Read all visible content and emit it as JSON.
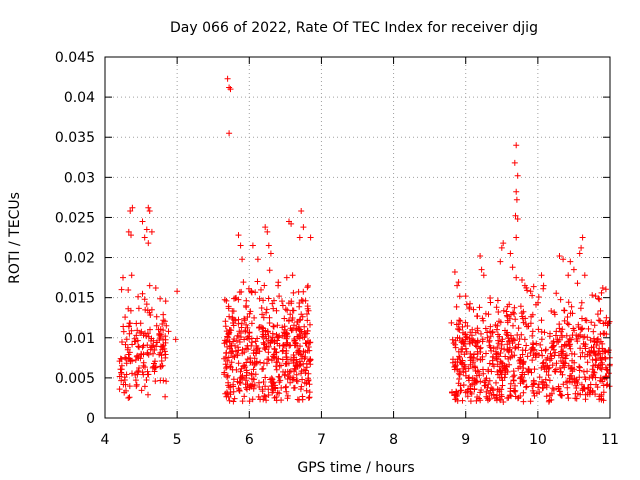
{
  "chart_data": {
    "type": "scatter",
    "title": "Day 066 of 2022, Rate Of TEC Index for receiver djig",
    "xlabel": "GPS time / hours",
    "ylabel": "ROTI / TECUs",
    "xlim": [
      4,
      11
    ],
    "ylim": [
      0,
      0.045
    ],
    "xticks": [
      "4",
      "5",
      "6",
      "7",
      "8",
      "9",
      "10",
      "11"
    ],
    "yticks": [
      "0",
      "0.005",
      "0.01",
      "0.015",
      "0.02",
      "0.025",
      "0.03",
      "0.035",
      "0.04",
      "0.045"
    ],
    "grid": true,
    "marker": "+",
    "marker_color": "#ff0000",
    "series": [
      {
        "name": "ROTI",
        "clusters": [
          {
            "x": [
              4.2,
              4.85
            ],
            "y_center": 0.0085,
            "y_spread": 0.003,
            "n": 170
          },
          {
            "x": [
              5.65,
              6.85
            ],
            "y_center": 0.0085,
            "y_spread": 0.0038,
            "n": 520
          },
          {
            "x": [
              8.8,
              11.0
            ],
            "y_center": 0.0075,
            "y_spread": 0.0035,
            "n": 780
          }
        ],
        "points": [
          [
            4.25,
            0.0175
          ],
          [
            4.23,
            0.016
          ],
          [
            4.35,
            0.0258
          ],
          [
            4.38,
            0.0262
          ],
          [
            4.33,
            0.0232
          ],
          [
            4.36,
            0.0228
          ],
          [
            4.37,
            0.0178
          ],
          [
            4.52,
            0.0245
          ],
          [
            4.6,
            0.0262
          ],
          [
            4.62,
            0.0258
          ],
          [
            4.58,
            0.0235
          ],
          [
            4.65,
            0.0232
          ],
          [
            4.55,
            0.0225
          ],
          [
            4.6,
            0.0218
          ],
          [
            4.52,
            0.0155
          ],
          [
            4.55,
            0.0148
          ],
          [
            4.62,
            0.0165
          ],
          [
            4.58,
            0.0142
          ],
          [
            4.65,
            0.0135
          ],
          [
            4.85,
            0.0115
          ],
          [
            4.88,
            0.0108
          ],
          [
            5.0,
            0.0158
          ],
          [
            4.98,
            0.0098
          ],
          [
            5.7,
            0.0423
          ],
          [
            5.72,
            0.0412
          ],
          [
            5.74,
            0.041
          ],
          [
            5.72,
            0.0355
          ],
          [
            5.85,
            0.0228
          ],
          [
            5.88,
            0.0215
          ],
          [
            5.9,
            0.0198
          ],
          [
            6.05,
            0.0215
          ],
          [
            6.12,
            0.0198
          ],
          [
            6.22,
            0.0238
          ],
          [
            6.25,
            0.0232
          ],
          [
            6.27,
            0.0215
          ],
          [
            6.3,
            0.0205
          ],
          [
            6.55,
            0.0245
          ],
          [
            6.58,
            0.0242
          ],
          [
            6.72,
            0.0258
          ],
          [
            6.75,
            0.0238
          ],
          [
            6.7,
            0.0225
          ],
          [
            6.85,
            0.0225
          ],
          [
            6.6,
            0.0178
          ],
          [
            6.52,
            0.0175
          ],
          [
            6.4,
            0.0165
          ],
          [
            6.28,
            0.0125
          ],
          [
            6.35,
            0.0025
          ],
          [
            6.38,
            0.0022
          ],
          [
            8.85,
            0.0182
          ],
          [
            8.88,
            0.0165
          ],
          [
            9.0,
            0.0152
          ],
          [
            9.05,
            0.0138
          ],
          [
            9.2,
            0.0202
          ],
          [
            9.22,
            0.0185
          ],
          [
            9.25,
            0.0178
          ],
          [
            9.48,
            0.0195
          ],
          [
            9.5,
            0.0212
          ],
          [
            9.52,
            0.0218
          ],
          [
            9.62,
            0.0205
          ],
          [
            9.65,
            0.0188
          ],
          [
            9.7,
            0.0175
          ],
          [
            9.7,
            0.034
          ],
          [
            9.68,
            0.0318
          ],
          [
            9.72,
            0.0302
          ],
          [
            9.7,
            0.0282
          ],
          [
            9.71,
            0.0272
          ],
          [
            9.69,
            0.0252
          ],
          [
            9.72,
            0.0248
          ],
          [
            9.7,
            0.0225
          ],
          [
            9.78,
            0.0172
          ],
          [
            9.82,
            0.0165
          ],
          [
            9.9,
            0.0158
          ],
          [
            10.05,
            0.0178
          ],
          [
            10.08,
            0.0165
          ],
          [
            10.3,
            0.0202
          ],
          [
            10.35,
            0.0198
          ],
          [
            10.45,
            0.0195
          ],
          [
            10.5,
            0.0185
          ],
          [
            10.42,
            0.0178
          ],
          [
            10.55,
            0.0168
          ],
          [
            10.6,
            0.0212
          ],
          [
            10.62,
            0.0225
          ],
          [
            10.58,
            0.0205
          ],
          [
            10.65,
            0.0178
          ],
          [
            10.8,
            0.0152
          ],
          [
            10.85,
            0.0148
          ],
          [
            10.9,
            0.0162
          ],
          [
            10.95,
            0.0125
          ],
          [
            10.98,
            0.0118
          ]
        ]
      }
    ]
  }
}
